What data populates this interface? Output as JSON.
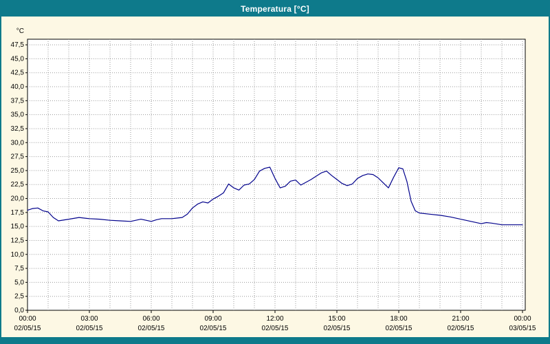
{
  "window": {
    "title": "Temperatura [°C]"
  },
  "colors": {
    "header_bg": "#0e7a8b",
    "window_background": "#fdf8e4",
    "plot_background": "#ffffff",
    "plot_border": "#000000",
    "grid": "#9a9a9a",
    "line": "#00008b",
    "title_text": "#ffffff",
    "tick_text": "#000000"
  },
  "chart_data": {
    "type": "line",
    "title": "Temperatura [°C]",
    "ylabel": "°C",
    "ylim": [
      0,
      48.5
    ],
    "ytick_step": 2.5,
    "yticks": [
      "0,0",
      "2,5",
      "5,0",
      "7,5",
      "10,0",
      "12,5",
      "15,0",
      "17,5",
      "20,0",
      "22,5",
      "25,0",
      "27,5",
      "30,0",
      "32,5",
      "35,0",
      "37,5",
      "40,0",
      "42,5",
      "45,0",
      "47,5"
    ],
    "x_span_hours": 24,
    "minor_grid_hours": 1,
    "grid": "dotted",
    "legend": "none",
    "xticks": [
      {
        "hour": 0,
        "time": "00:00",
        "date": "02/05/15"
      },
      {
        "hour": 3,
        "time": "03:00",
        "date": "02/05/15"
      },
      {
        "hour": 6,
        "time": "06:00",
        "date": "02/05/15"
      },
      {
        "hour": 9,
        "time": "09:00",
        "date": "02/05/15"
      },
      {
        "hour": 12,
        "time": "12:00",
        "date": "02/05/15"
      },
      {
        "hour": 15,
        "time": "15:00",
        "date": "02/05/15"
      },
      {
        "hour": 18,
        "time": "18:00",
        "date": "02/05/15"
      },
      {
        "hour": 21,
        "time": "21:00",
        "date": "02/05/15"
      },
      {
        "hour": 24,
        "time": "00:00",
        "date": "03/05/15"
      }
    ],
    "series": [
      {
        "name": "Temperatura",
        "x": [
          0,
          0.25,
          0.5,
          0.75,
          1,
          1.25,
          1.5,
          2,
          2.5,
          2.75,
          3,
          3.5,
          4,
          4.5,
          5,
          5.25,
          5.5,
          6,
          6.25,
          6.5,
          7,
          7.5,
          7.75,
          8,
          8.25,
          8.5,
          8.75,
          9,
          9.25,
          9.5,
          9.75,
          10,
          10.25,
          10.5,
          10.75,
          11,
          11.25,
          11.5,
          11.75,
          12,
          12.25,
          12.5,
          12.75,
          13,
          13.25,
          13.5,
          13.75,
          14,
          14.25,
          14.5,
          14.75,
          15,
          15.25,
          15.5,
          15.75,
          16,
          16.25,
          16.5,
          16.75,
          17,
          17.25,
          17.5,
          17.75,
          18,
          18.2,
          18.4,
          18.6,
          18.8,
          19,
          19.5,
          20,
          20.5,
          21,
          21.5,
          22,
          22.25,
          22.5,
          23,
          23.5,
          24
        ],
        "values": [
          17.9,
          18.2,
          18.3,
          17.8,
          17.6,
          16.6,
          16.0,
          16.3,
          16.6,
          16.5,
          16.4,
          16.3,
          16.1,
          16.0,
          15.9,
          16.1,
          16.3,
          15.9,
          16.2,
          16.4,
          16.4,
          16.6,
          17.2,
          18.3,
          19.0,
          19.4,
          19.2,
          19.9,
          20.4,
          21.0,
          22.6,
          21.9,
          21.5,
          22.4,
          22.6,
          23.4,
          24.9,
          25.4,
          25.6,
          23.6,
          21.9,
          22.2,
          23.1,
          23.3,
          22.4,
          22.9,
          23.4,
          24.0,
          24.6,
          24.9,
          24.1,
          23.4,
          22.7,
          22.3,
          22.6,
          23.6,
          24.1,
          24.4,
          24.3,
          23.7,
          22.8,
          21.9,
          23.8,
          25.5,
          25.3,
          23.0,
          19.5,
          17.8,
          17.4,
          17.2,
          17.0,
          16.7,
          16.3,
          15.9,
          15.5,
          15.7,
          15.6,
          15.3,
          15.3,
          15.3
        ]
      }
    ]
  }
}
